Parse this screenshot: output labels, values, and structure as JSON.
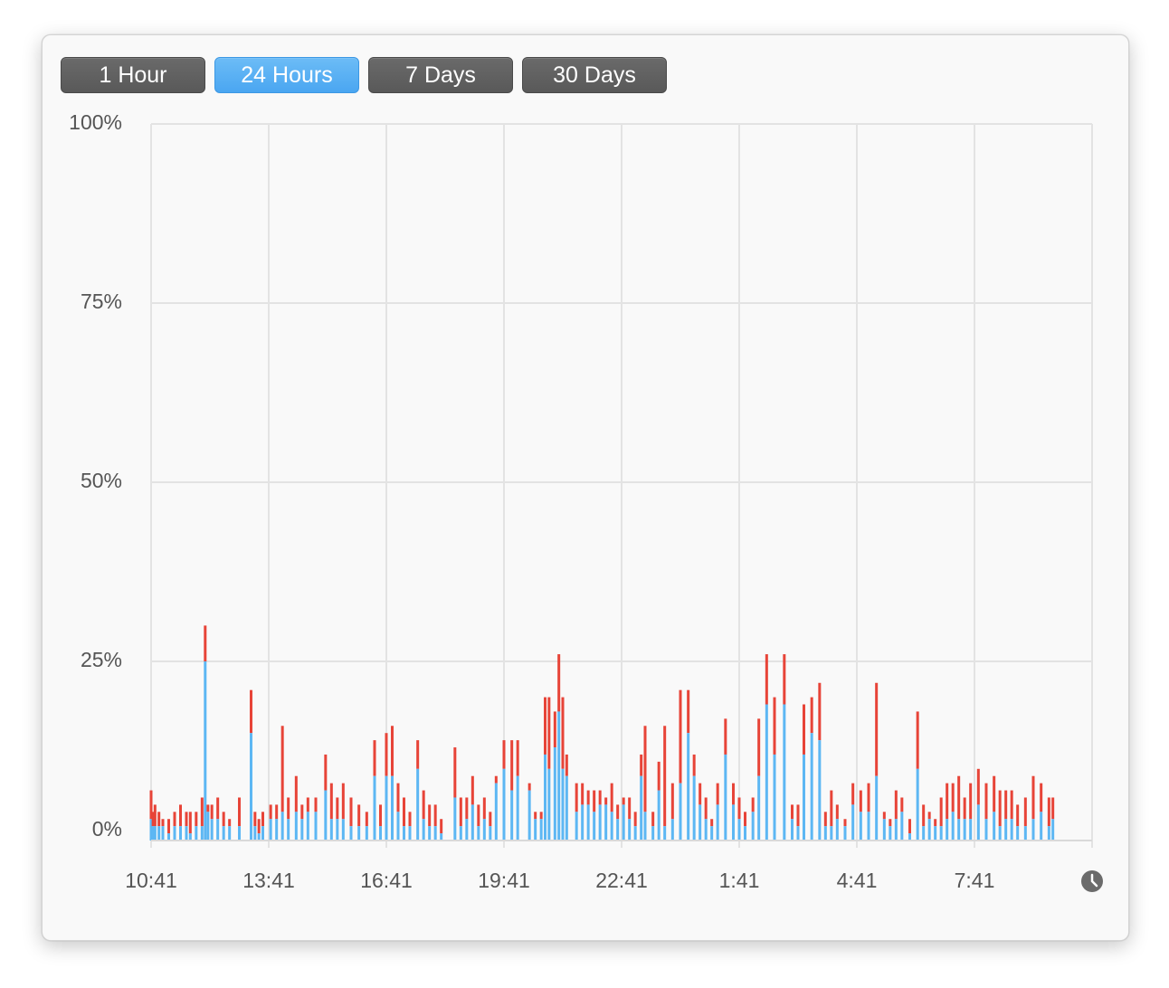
{
  "range_buttons": [
    {
      "label": "1 Hour",
      "active": false
    },
    {
      "label": "24 Hours",
      "active": true
    },
    {
      "label": "7 Days",
      "active": false
    },
    {
      "label": "30 Days",
      "active": false
    }
  ],
  "clock_icon": "clock-icon",
  "chart_data": {
    "type": "area",
    "stacked": true,
    "title": "",
    "xlabel": "",
    "ylabel": "",
    "ylim": [
      0,
      100
    ],
    "y_ticks": [
      "0%",
      "25%",
      "50%",
      "75%",
      "100%"
    ],
    "x_ticks": [
      "10:41",
      "13:41",
      "16:41",
      "19:41",
      "22:41",
      "1:41",
      "4:41",
      "7:41"
    ],
    "grid": true,
    "series_colors": [
      "#5db7f3",
      "#e74438"
    ],
    "samples": [
      [
        0.0,
        3,
        7
      ],
      [
        0.05,
        2,
        4
      ],
      [
        0.1,
        2,
        5
      ],
      [
        0.2,
        2,
        4
      ],
      [
        0.3,
        2,
        3
      ],
      [
        0.45,
        1,
        3
      ],
      [
        0.6,
        2,
        4
      ],
      [
        0.75,
        2,
        5
      ],
      [
        0.9,
        2,
        4
      ],
      [
        1.0,
        1,
        4
      ],
      [
        1.15,
        2,
        4
      ],
      [
        1.3,
        2,
        6
      ],
      [
        1.38,
        25,
        30
      ],
      [
        1.45,
        4,
        5
      ],
      [
        1.55,
        3,
        5
      ],
      [
        1.7,
        3,
        6
      ],
      [
        1.85,
        2,
        4
      ],
      [
        2.0,
        2,
        3
      ],
      [
        2.25,
        2,
        6
      ],
      [
        2.55,
        15,
        21
      ],
      [
        2.65,
        2,
        4
      ],
      [
        2.75,
        1,
        3
      ],
      [
        2.85,
        2,
        4
      ],
      [
        3.05,
        3,
        5
      ],
      [
        3.2,
        3,
        5
      ],
      [
        3.35,
        4,
        16
      ],
      [
        3.5,
        3,
        6
      ],
      [
        3.7,
        4,
        9
      ],
      [
        3.85,
        3,
        5
      ],
      [
        4.0,
        4,
        6
      ],
      [
        4.2,
        4,
        6
      ],
      [
        4.45,
        7,
        12
      ],
      [
        4.6,
        3,
        8
      ],
      [
        4.75,
        3,
        6
      ],
      [
        4.9,
        3,
        8
      ],
      [
        5.1,
        2,
        6
      ],
      [
        5.3,
        2,
        5
      ],
      [
        5.5,
        2,
        4
      ],
      [
        5.7,
        9,
        14
      ],
      [
        5.85,
        2,
        5
      ],
      [
        6.0,
        9,
        15
      ],
      [
        6.15,
        9,
        16
      ],
      [
        6.3,
        4,
        8
      ],
      [
        6.45,
        2,
        6
      ],
      [
        6.6,
        2,
        4
      ],
      [
        6.8,
        10,
        14
      ],
      [
        6.95,
        3,
        7
      ],
      [
        7.1,
        2,
        5
      ],
      [
        7.25,
        2,
        5
      ],
      [
        7.4,
        1,
        3
      ],
      [
        7.75,
        6,
        13
      ],
      [
        7.9,
        2,
        6
      ],
      [
        8.05,
        3,
        6
      ],
      [
        8.2,
        5,
        9
      ],
      [
        8.35,
        2,
        5
      ],
      [
        8.5,
        3,
        6
      ],
      [
        8.65,
        2,
        4
      ],
      [
        8.8,
        8,
        9
      ],
      [
        9.0,
        10,
        14
      ],
      [
        9.2,
        7,
        14
      ],
      [
        9.35,
        9,
        14
      ],
      [
        9.65,
        7,
        8
      ],
      [
        9.8,
        3,
        4
      ],
      [
        9.95,
        3,
        4
      ],
      [
        10.05,
        12,
        20
      ],
      [
        10.15,
        10,
        20
      ],
      [
        10.3,
        13,
        18
      ],
      [
        10.4,
        18,
        26
      ],
      [
        10.5,
        10,
        20
      ],
      [
        10.6,
        9,
        12
      ],
      [
        10.85,
        4,
        8
      ],
      [
        11.0,
        5,
        8
      ],
      [
        11.15,
        5,
        7
      ],
      [
        11.3,
        4,
        7
      ],
      [
        11.45,
        5,
        7
      ],
      [
        11.6,
        5,
        6
      ],
      [
        11.75,
        4,
        8
      ],
      [
        11.9,
        3,
        5
      ],
      [
        12.05,
        5,
        6
      ],
      [
        12.2,
        3,
        6
      ],
      [
        12.35,
        2,
        4
      ],
      [
        12.5,
        9,
        12
      ],
      [
        12.6,
        4,
        16
      ],
      [
        12.8,
        2,
        4
      ],
      [
        12.95,
        7,
        11
      ],
      [
        13.1,
        2,
        16
      ],
      [
        13.3,
        3,
        8
      ],
      [
        13.5,
        8,
        21
      ],
      [
        13.7,
        15,
        21
      ],
      [
        13.85,
        9,
        12
      ],
      [
        14.0,
        5,
        8
      ],
      [
        14.15,
        3,
        6
      ],
      [
        14.3,
        2,
        3
      ],
      [
        14.45,
        5,
        8
      ],
      [
        14.65,
        12,
        17
      ],
      [
        14.85,
        5,
        8
      ],
      [
        15.0,
        3,
        6
      ],
      [
        15.15,
        2,
        4
      ],
      [
        15.35,
        4,
        6
      ],
      [
        15.5,
        9,
        17
      ],
      [
        15.7,
        19,
        26
      ],
      [
        15.9,
        12,
        20
      ],
      [
        16.15,
        19,
        26
      ],
      [
        16.35,
        3,
        5
      ],
      [
        16.5,
        2,
        5
      ],
      [
        16.65,
        12,
        19
      ],
      [
        16.85,
        15,
        20
      ],
      [
        17.05,
        14,
        22
      ],
      [
        17.2,
        2,
        4
      ],
      [
        17.35,
        2,
        7
      ],
      [
        17.5,
        3,
        5
      ],
      [
        17.7,
        2,
        3
      ],
      [
        17.9,
        5,
        8
      ],
      [
        18.1,
        4,
        7
      ],
      [
        18.3,
        4,
        8
      ],
      [
        18.5,
        9,
        22
      ],
      [
        18.7,
        3,
        4
      ],
      [
        18.85,
        2,
        3
      ],
      [
        19.0,
        3,
        7
      ],
      [
        19.15,
        4,
        6
      ],
      [
        19.35,
        1,
        3
      ],
      [
        19.55,
        10,
        18
      ],
      [
        19.7,
        2,
        5
      ],
      [
        19.85,
        3,
        4
      ],
      [
        20.0,
        2,
        3
      ],
      [
        20.15,
        2,
        6
      ],
      [
        20.3,
        3,
        8
      ],
      [
        20.45,
        4,
        8
      ],
      [
        20.6,
        3,
        9
      ],
      [
        20.75,
        3,
        6
      ],
      [
        20.9,
        3,
        8
      ],
      [
        21.1,
        5,
        10
      ],
      [
        21.3,
        3,
        8
      ],
      [
        21.5,
        4,
        9
      ],
      [
        21.65,
        2,
        7
      ],
      [
        21.8,
        3,
        7
      ],
      [
        21.95,
        3,
        7
      ],
      [
        22.1,
        2,
        5
      ],
      [
        22.3,
        2,
        6
      ],
      [
        22.5,
        3,
        9
      ],
      [
        22.7,
        4,
        8
      ],
      [
        22.9,
        2,
        6
      ],
      [
        23.0,
        3,
        6
      ]
    ]
  }
}
